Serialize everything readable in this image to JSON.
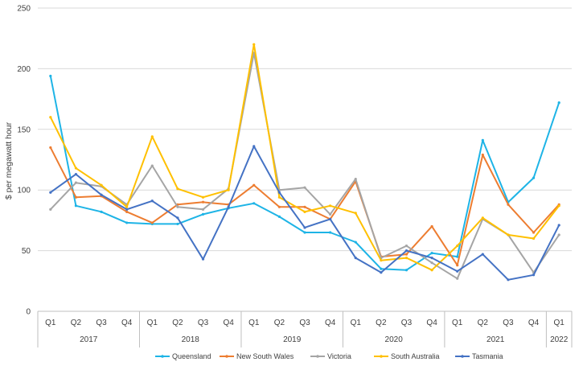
{
  "chart_data": {
    "type": "line",
    "title": "",
    "ylabel": "$ per megawatt hour",
    "xlabel": "",
    "ylim": [
      0,
      250
    ],
    "yticks": [
      "0",
      "50",
      "100",
      "150",
      "200",
      "250"
    ],
    "quarters": [
      "Q1",
      "Q2",
      "Q3",
      "Q4",
      "Q1",
      "Q2",
      "Q3",
      "Q4",
      "Q1",
      "Q2",
      "Q3",
      "Q4",
      "Q1",
      "Q2",
      "Q3",
      "Q4",
      "Q1",
      "Q2",
      "Q3",
      "Q4",
      "Q1"
    ],
    "years": [
      {
        "label": "2017",
        "start": 0,
        "end": 3
      },
      {
        "label": "2018",
        "start": 4,
        "end": 7
      },
      {
        "label": "2019",
        "start": 8,
        "end": 11
      },
      {
        "label": "2020",
        "start": 12,
        "end": 15
      },
      {
        "label": "2021",
        "start": 16,
        "end": 19
      },
      {
        "label": "2022",
        "start": 20,
        "end": 20
      }
    ],
    "grid": true,
    "legend_position": "bottom",
    "series": [
      {
        "name": "Queensland",
        "color": "#1EB4E6",
        "values": [
          194,
          87,
          82,
          73,
          72,
          72,
          80,
          85,
          89,
          78,
          65,
          65,
          57,
          35,
          34,
          48,
          45,
          141,
          90,
          110,
          172
        ]
      },
      {
        "name": "New South Wales",
        "color": "#ED7D31",
        "values": [
          135,
          94,
          95,
          82,
          73,
          88,
          90,
          88,
          104,
          86,
          86,
          76,
          107,
          45,
          47,
          70,
          38,
          129,
          88,
          65,
          88
        ]
      },
      {
        "name": "Victoria",
        "color": "#A5A5A5",
        "values": [
          84,
          106,
          103,
          88,
          120,
          86,
          84,
          101,
          213,
          100,
          102,
          80,
          109,
          44,
          54,
          40,
          27,
          76,
          63,
          32,
          63
        ]
      },
      {
        "name": "South Australia",
        "color": "#FFC000",
        "values": [
          160,
          118,
          104,
          86,
          144,
          101,
          94,
          100,
          220,
          94,
          82,
          87,
          81,
          42,
          44,
          34,
          54,
          77,
          63,
          60,
          87
        ]
      },
      {
        "name": "Tasmania",
        "color": "#4472C4",
        "values": [
          98,
          113,
          96,
          84,
          91,
          77,
          43,
          86,
          136,
          98,
          69,
          76,
          44,
          32,
          50,
          44,
          33,
          47,
          26,
          30,
          71
        ]
      }
    ]
  }
}
